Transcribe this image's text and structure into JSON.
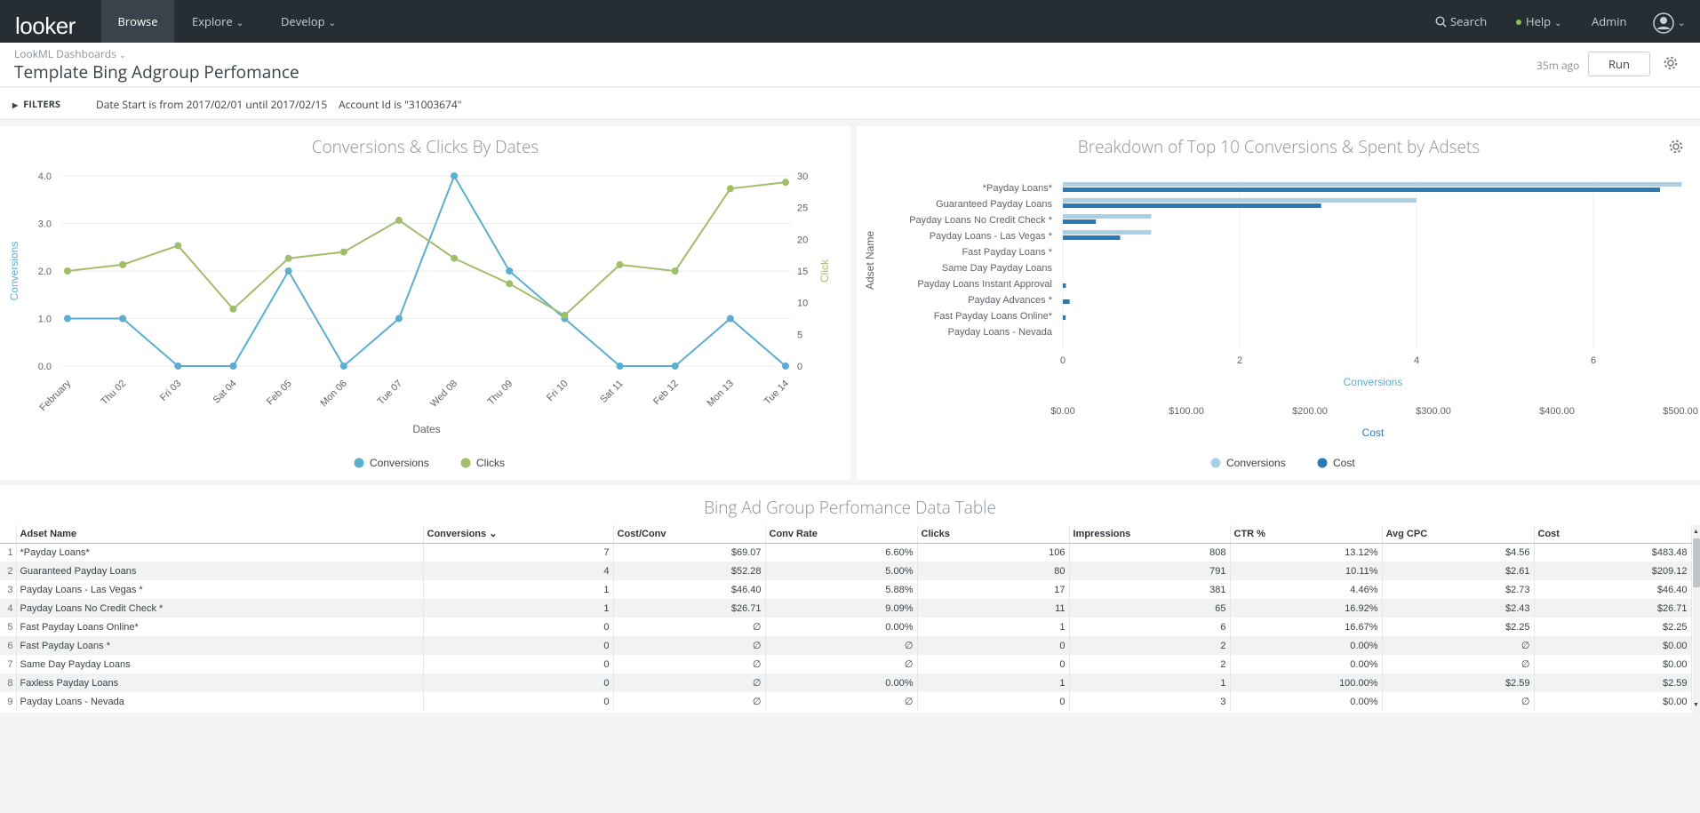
{
  "nav": {
    "logo": "looker",
    "items": [
      {
        "label": "Browse",
        "active": true
      },
      {
        "label": "Explore",
        "chevron": true
      },
      {
        "label": "Develop",
        "chevron": true
      }
    ],
    "search_label": "Search",
    "help_label": "Help",
    "admin_label": "Admin",
    "icons": [
      "search-icon",
      "help-dot-icon",
      "user-avatar-icon",
      "chevron-down-icon"
    ]
  },
  "header": {
    "breadcrumb": "LookML Dashboards",
    "title": "Template Bing Adgroup Perfomance",
    "last_run": "35m ago",
    "run_label": "Run",
    "settings_icon": "gear-icon"
  },
  "filters": {
    "label": "FILTERS",
    "items": [
      "Date Start is from 2017/02/01 until 2017/02/15",
      "Account Id is \"31003674\""
    ]
  },
  "chart_data": [
    {
      "type": "line",
      "title": "Conversions & Clicks By Dates",
      "xlabel": "Dates",
      "ylabel": "Conversions",
      "y2label": "Click",
      "categories": [
        "February",
        "Thu 02",
        "Fri 03",
        "Sat 04",
        "Feb 05",
        "Mon 06",
        "Tue 07",
        "Wed 08",
        "Thu 09",
        "Fri 10",
        "Sat 11",
        "Feb 12",
        "Mon 13",
        "Tue 14"
      ],
      "y_ticks": [
        "4.0",
        "3.0",
        "2.0",
        "1.0",
        "0.0"
      ],
      "y2_ticks": [
        "30",
        "25",
        "20",
        "15",
        "10",
        "5",
        "0"
      ],
      "ylim": [
        0,
        4
      ],
      "y2lim": [
        0,
        30
      ],
      "grid": true,
      "legend_position": "bottom",
      "series": [
        {
          "name": "Conversions",
          "axis": "left",
          "color": "#5aaecf",
          "values": [
            1,
            1,
            0,
            0,
            2,
            0,
            1,
            4,
            2,
            1,
            0,
            0,
            1,
            0
          ]
        },
        {
          "name": "Clicks",
          "axis": "right",
          "color": "#a2bd6a",
          "values": [
            15,
            16,
            19,
            9,
            17,
            18,
            23,
            17,
            13,
            8,
            16,
            15,
            28,
            29
          ]
        }
      ]
    },
    {
      "type": "bar",
      "orientation": "horizontal",
      "title": "Breakdown of Top 10 Conversions & Spent by Adsets",
      "ylabel": "Adset Name",
      "xlabel": "Conversions",
      "x2label": "Cost",
      "categories": [
        "*Payday Loans*",
        "Guaranteed Payday Loans",
        "Payday Loans No Credit Check *",
        "Payday Loans - Las Vegas *",
        "Fast Payday Loans *",
        "Same Day Payday Loans",
        "Payday Loans Instant Approval",
        "Payday Advances *",
        "Fast Payday Loans Online*",
        "Payday Loans - Nevada"
      ],
      "x_ticks": [
        "0",
        "2",
        "4",
        "6"
      ],
      "x2_ticks": [
        "$0.00",
        "$100.00",
        "$200.00",
        "$300.00",
        "$400.00",
        "$500.00"
      ],
      "xlim": [
        0,
        7
      ],
      "x2lim": [
        0,
        500
      ],
      "legend_position": "bottom",
      "series": [
        {
          "name": "Conversions",
          "color": "#a9d1e6",
          "values": [
            7,
            4,
            1,
            1,
            0,
            0,
            0,
            0,
            0,
            0
          ]
        },
        {
          "name": "Cost",
          "color": "#2b7ab5",
          "values": [
            483.48,
            209.12,
            26.71,
            46.4,
            0,
            0,
            2.5,
            5.5,
            2.25,
            0
          ]
        }
      ]
    }
  ],
  "chart_settings_icon": "gear-icon",
  "table": {
    "title": "Bing Ad Group Perfomance Data Table",
    "columns": [
      "Adset Name",
      "Conversions",
      "Cost/Conv",
      "Conv Rate",
      "Clicks",
      "Impressions",
      "CTR %",
      "Avg CPC",
      "Cost"
    ],
    "sort_indicator": "chevron-down-icon",
    "rows": [
      [
        "1",
        "*Payday Loans*",
        "7",
        "$69.07",
        "6.60%",
        "106",
        "808",
        "13.12%",
        "$4.56",
        "$483.48"
      ],
      [
        "2",
        "Guaranteed Payday Loans",
        "4",
        "$52.28",
        "5.00%",
        "80",
        "791",
        "10.11%",
        "$2.61",
        "$209.12"
      ],
      [
        "3",
        "Payday Loans - Las Vegas *",
        "1",
        "$46.40",
        "5.88%",
        "17",
        "381",
        "4.46%",
        "$2.73",
        "$46.40"
      ],
      [
        "4",
        "Payday Loans No Credit Check *",
        "1",
        "$26.71",
        "9.09%",
        "11",
        "65",
        "16.92%",
        "$2.43",
        "$26.71"
      ],
      [
        "5",
        "Fast Payday Loans Online*",
        "0",
        "∅",
        "0.00%",
        "1",
        "6",
        "16.67%",
        "$2.25",
        "$2.25"
      ],
      [
        "6",
        "Fast Payday Loans *",
        "0",
        "∅",
        "∅",
        "0",
        "2",
        "0.00%",
        "∅",
        "$0.00"
      ],
      [
        "7",
        "Same Day Payday Loans",
        "0",
        "∅",
        "∅",
        "0",
        "2",
        "0.00%",
        "∅",
        "$0.00"
      ],
      [
        "8",
        "Faxless Payday Loans",
        "0",
        "∅",
        "0.00%",
        "1",
        "1",
        "100.00%",
        "$2.59",
        "$2.59"
      ],
      [
        "9",
        "Payday Loans - Nevada",
        "0",
        "∅",
        "∅",
        "0",
        "3",
        "0.00%",
        "∅",
        "$0.00"
      ]
    ]
  }
}
